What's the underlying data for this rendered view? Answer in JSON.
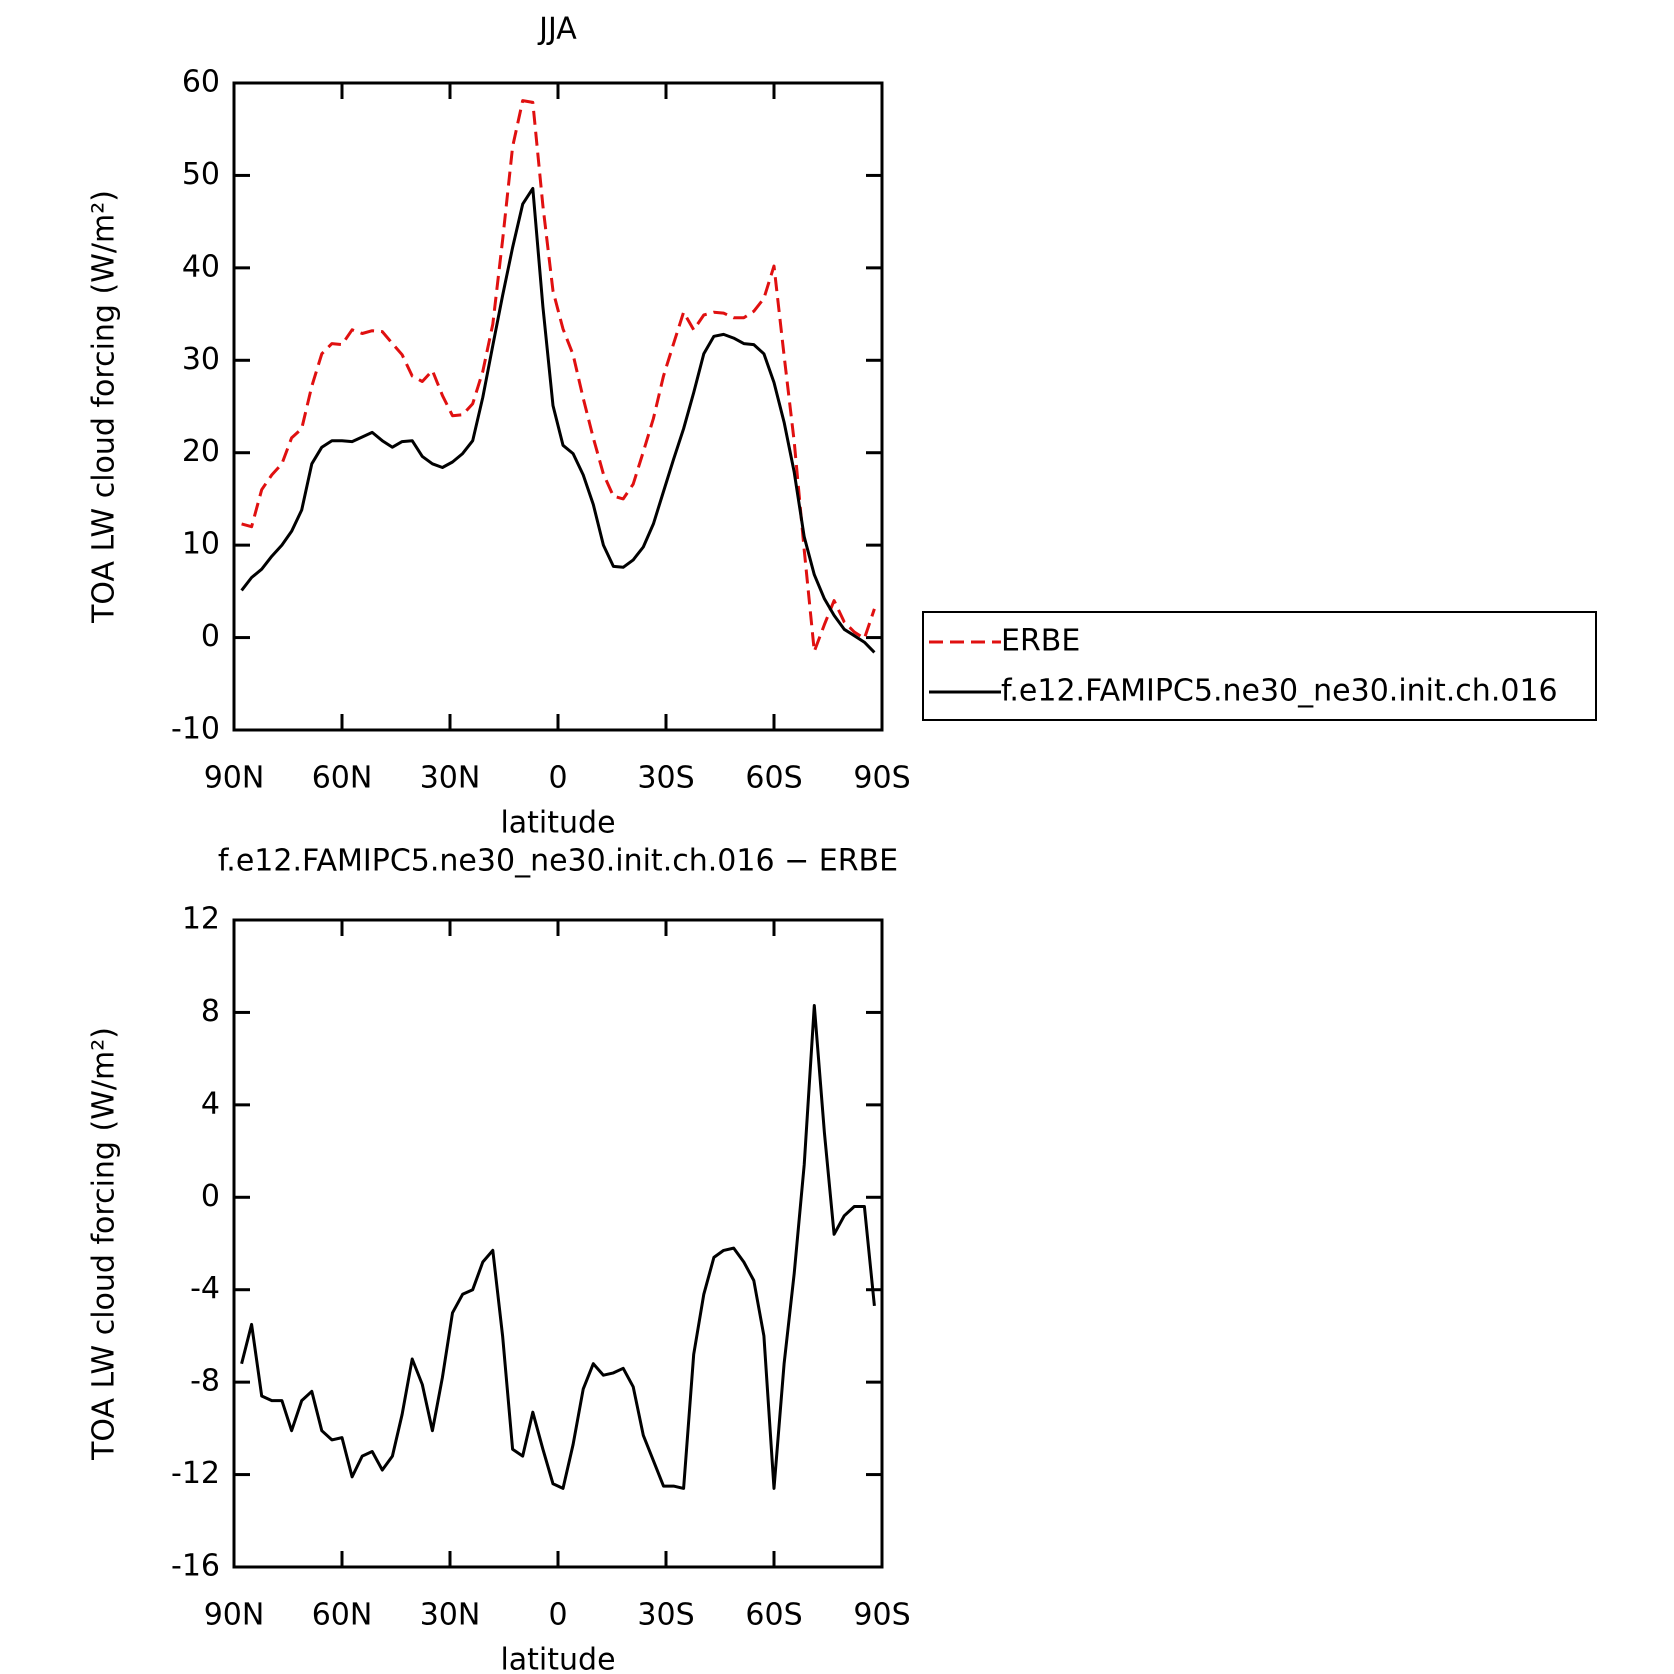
{
  "chart_data": [
    {
      "type": "line",
      "title": "JJA",
      "x_label": "latitude",
      "y_label": "TOA LW cloud forcing (W/m²)",
      "x": [
        87.9,
        85.1,
        82.3,
        79.5,
        76.7,
        74.0,
        71.2,
        68.4,
        65.6,
        62.8,
        60.0,
        57.2,
        54.4,
        51.6,
        48.8,
        46.0,
        43.3,
        40.5,
        37.7,
        34.9,
        32.1,
        29.3,
        26.5,
        23.7,
        20.9,
        18.1,
        15.4,
        12.6,
        9.8,
        7.0,
        4.2,
        1.4,
        -1.4,
        -4.2,
        -7.0,
        -9.8,
        -12.6,
        -15.4,
        -18.1,
        -20.9,
        -23.7,
        -26.5,
        -29.3,
        -32.1,
        -34.9,
        -37.7,
        -40.5,
        -43.3,
        -46.0,
        -48.8,
        -51.6,
        -54.4,
        -57.2,
        -60.0,
        -62.8,
        -65.6,
        -68.4,
        -71.2,
        -74.0,
        -76.7,
        -79.5,
        -82.3,
        -85.1,
        -87.9
      ],
      "series": [
        {
          "name": "ERBE",
          "color": "#e01010",
          "linestyle": "dashed",
          "values": [
            12.3,
            12.0,
            16.0,
            17.6,
            18.8,
            21.6,
            22.6,
            27.2,
            30.7,
            31.8,
            31.7,
            33.3,
            32.9,
            33.2,
            33.1,
            31.8,
            30.6,
            28.3,
            27.7,
            28.9,
            26.2,
            24.0,
            24.1,
            25.3,
            28.8,
            33.9,
            43.0,
            53.1,
            58.1,
            57.9,
            46.7,
            37.5,
            33.4,
            30.6,
            25.9,
            21.6,
            17.7,
            15.3,
            15.0,
            16.6,
            20.1,
            23.7,
            28.3,
            31.8,
            35.2,
            33.3,
            34.9,
            35.2,
            35.1,
            34.6,
            34.6,
            35.3,
            36.7,
            40.2,
            30.5,
            21.2,
            9.5,
            -1.5,
            1.4,
            4.0,
            1.7,
            0.6,
            -0.1,
            3.1
          ]
        },
        {
          "name": "f.e12.FAMIPC5.ne30_ne30.init.ch.016",
          "color": "#000000",
          "linestyle": "solid",
          "values": [
            5.1,
            6.5,
            7.4,
            8.8,
            10.0,
            11.5,
            13.8,
            18.8,
            20.6,
            21.3,
            21.3,
            21.2,
            21.7,
            22.2,
            21.3,
            20.6,
            21.2,
            21.3,
            19.6,
            18.8,
            18.4,
            19.0,
            19.9,
            21.3,
            26.0,
            31.6,
            37.0,
            42.2,
            46.9,
            48.6,
            35.8,
            25.1,
            20.8,
            19.9,
            17.6,
            14.4,
            10.0,
            7.7,
            7.6,
            8.4,
            9.8,
            12.3,
            15.8,
            19.3,
            22.6,
            26.5,
            30.7,
            32.6,
            32.8,
            32.4,
            31.8,
            31.7,
            30.7,
            27.6,
            23.3,
            17.9,
            10.9,
            6.8,
            4.2,
            2.4,
            0.9,
            0.2,
            -0.5,
            -1.6
          ]
        }
      ],
      "xlim": [
        90,
        -90
      ],
      "xticks": [
        {
          "value": 90,
          "label": "90N"
        },
        {
          "value": 60,
          "label": "60N"
        },
        {
          "value": 30,
          "label": "30N"
        },
        0,
        {
          "value": -30,
          "label": "30S"
        },
        {
          "value": -60,
          "label": "60S"
        },
        {
          "value": -90,
          "label": "90S"
        }
      ],
      "ylim": [
        -10,
        60
      ],
      "yticks": [
        -10,
        0,
        10,
        20,
        30,
        40,
        50,
        60
      ],
      "legend": "right"
    },
    {
      "type": "line",
      "title": "f.e12.FAMIPC5.ne30_ne30.init.ch.016 − ERBE",
      "x_label": "latitude",
      "y_label": "TOA LW cloud forcing (W/m²)",
      "x": [
        87.9,
        85.1,
        82.3,
        79.5,
        76.7,
        74.0,
        71.2,
        68.4,
        65.6,
        62.8,
        60.0,
        57.2,
        54.4,
        51.6,
        48.8,
        46.0,
        43.3,
        40.5,
        37.7,
        34.9,
        32.1,
        29.3,
        26.5,
        23.7,
        20.9,
        18.1,
        15.4,
        12.6,
        9.8,
        7.0,
        4.2,
        1.4,
        -1.4,
        -4.2,
        -7.0,
        -9.8,
        -12.6,
        -15.4,
        -18.1,
        -20.9,
        -23.7,
        -26.5,
        -29.3,
        -32.1,
        -34.9,
        -37.7,
        -40.5,
        -43.3,
        -46.0,
        -48.8,
        -51.6,
        -54.4,
        -57.2,
        -60.0,
        -62.8,
        -65.6,
        -68.4,
        -71.2,
        -74.0,
        -76.7,
        -79.5,
        -82.3,
        -85.1,
        -87.9
      ],
      "series": [
        {
          "color": "#000000",
          "linestyle": "solid",
          "values": [
            -7.2,
            -5.5,
            -8.6,
            -8.8,
            -8.8,
            -10.1,
            -8.8,
            -8.4,
            -10.1,
            -10.5,
            -10.4,
            -12.1,
            -11.2,
            -11.0,
            -11.8,
            -11.2,
            -9.4,
            -7.0,
            -8.1,
            -10.1,
            -7.8,
            -5.0,
            -4.2,
            -4.0,
            -2.8,
            -2.3,
            -6.0,
            -10.9,
            -11.2,
            -9.3,
            -10.9,
            -12.4,
            -12.6,
            -10.7,
            -8.3,
            -7.2,
            -7.7,
            -7.6,
            -7.4,
            -8.2,
            -10.3,
            -11.4,
            -12.5,
            -12.5,
            -12.6,
            -6.8,
            -4.2,
            -2.6,
            -2.3,
            -2.2,
            -2.8,
            -3.6,
            -6.0,
            -12.6,
            -7.2,
            -3.3,
            1.4,
            8.3,
            2.8,
            -1.6,
            -0.8,
            -0.4,
            -0.4,
            -4.7
          ]
        }
      ],
      "xlim": [
        90,
        -90
      ],
      "xticks": [
        {
          "value": 90,
          "label": "90N"
        },
        {
          "value": 60,
          "label": "60N"
        },
        {
          "value": 30,
          "label": "30N"
        },
        0,
        {
          "value": -30,
          "label": "30S"
        },
        {
          "value": -60,
          "label": "60S"
        },
        {
          "value": -90,
          "label": "90S"
        }
      ],
      "ylim": [
        -16,
        12
      ],
      "yticks": [
        -16,
        -12,
        -8,
        -4,
        0,
        4,
        8,
        12
      ]
    }
  ]
}
